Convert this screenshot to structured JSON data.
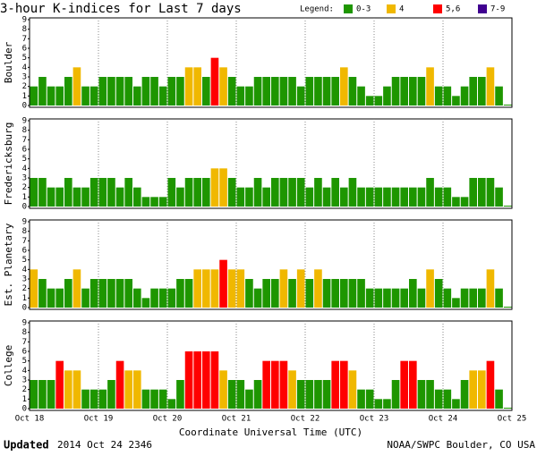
{
  "title": "3-hour K-indices for Last 7 days",
  "legend_title": "Legend:",
  "legend": [
    {
      "label": "0-3",
      "min": 0,
      "max": 3,
      "color": "#1e9600"
    },
    {
      "label": "4",
      "min": 4,
      "max": 4,
      "color": "#f0b800"
    },
    {
      "label": "5,6",
      "min": 5,
      "max": 6,
      "color": "#ff0000"
    },
    {
      "label": "7-9",
      "min": 7,
      "max": 9,
      "color": "#400090"
    }
  ],
  "footer_bold": "Updated",
  "footer_left": "2014 Oct 24 2346",
  "footer_right": "NOAA/SWPC Boulder, CO USA",
  "chart_data": [
    {
      "type": "bar",
      "ylabel": "Boulder",
      "ylim": [
        0,
        9
      ],
      "yticks": [
        0,
        1,
        2,
        3,
        4,
        5,
        6,
        7,
        8,
        9
      ],
      "values": [
        2,
        3,
        2,
        2,
        3,
        4,
        2,
        2,
        3,
        3,
        3,
        3,
        2,
        3,
        3,
        2,
        3,
        3,
        4,
        4,
        3,
        5,
        4,
        3,
        2,
        2,
        3,
        3,
        3,
        3,
        3,
        2,
        3,
        3,
        3,
        3,
        4,
        3,
        2,
        1,
        1,
        2,
        3,
        3,
        3,
        3,
        4,
        2,
        2,
        1,
        2,
        3,
        3,
        4,
        2,
        0
      ]
    },
    {
      "type": "bar",
      "ylabel": "Fredericksburg",
      "ylim": [
        0,
        9
      ],
      "yticks": [
        0,
        1,
        2,
        3,
        4,
        5,
        6,
        7,
        8,
        9
      ],
      "values": [
        3,
        3,
        2,
        2,
        3,
        2,
        2,
        3,
        3,
        3,
        2,
        3,
        2,
        1,
        1,
        1,
        3,
        2,
        3,
        3,
        3,
        4,
        4,
        3,
        2,
        2,
        3,
        2,
        3,
        3,
        3,
        3,
        2,
        3,
        2,
        3,
        2,
        3,
        2,
        2,
        2,
        2,
        2,
        2,
        2,
        2,
        3,
        2,
        2,
        1,
        1,
        3,
        3,
        3,
        2,
        0
      ]
    },
    {
      "type": "bar",
      "ylabel": "Est. Planetary",
      "ylim": [
        0,
        9
      ],
      "yticks": [
        0,
        1,
        2,
        3,
        4,
        5,
        6,
        7,
        8,
        9
      ],
      "values": [
        4,
        3,
        2,
        2,
        3,
        4,
        2,
        3,
        3,
        3,
        3,
        3,
        2,
        1,
        2,
        2,
        2,
        3,
        3,
        4,
        4,
        4,
        5,
        4,
        4,
        3,
        2,
        3,
        3,
        4,
        3,
        4,
        3,
        4,
        3,
        3,
        3,
        3,
        3,
        2,
        2,
        2,
        2,
        2,
        3,
        2,
        4,
        3,
        2,
        1,
        2,
        2,
        2,
        4,
        2,
        0
      ]
    },
    {
      "type": "bar",
      "ylabel": "College",
      "ylim": [
        0,
        9
      ],
      "yticks": [
        0,
        1,
        2,
        3,
        4,
        5,
        6,
        7,
        8,
        9
      ],
      "values": [
        3,
        3,
        3,
        5,
        4,
        4,
        2,
        2,
        2,
        3,
        5,
        4,
        4,
        2,
        2,
        2,
        1,
        3,
        6,
        6,
        6,
        6,
        4,
        3,
        3,
        2,
        3,
        5,
        5,
        5,
        4,
        3,
        3,
        3,
        3,
        5,
        5,
        4,
        2,
        2,
        1,
        1,
        3,
        5,
        5,
        3,
        3,
        2,
        2,
        1,
        3,
        4,
        4,
        5,
        2,
        0
      ],
      "xlabel": "Coordinate Universal Time (UTC)",
      "xtick_labels": [
        "Oct 18",
        "Oct 19",
        "Oct 20",
        "Oct 21",
        "Oct 22",
        "Oct 23",
        "Oct 24",
        "Oct 25"
      ]
    }
  ]
}
